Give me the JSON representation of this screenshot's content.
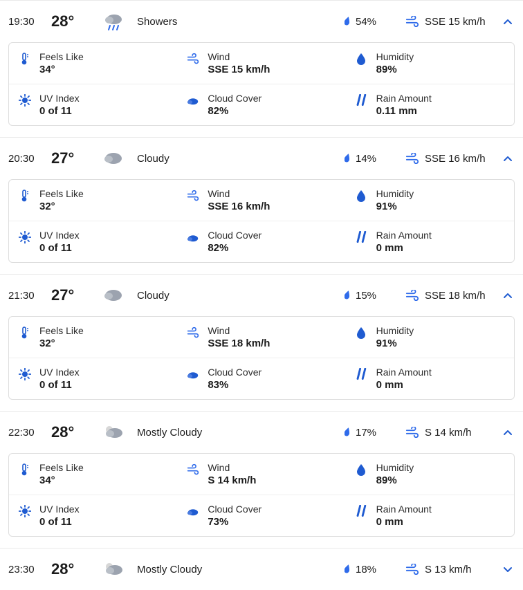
{
  "labels": {
    "feels_like": "Feels Like",
    "wind": "Wind",
    "humidity": "Humidity",
    "uv": "UV Index",
    "cloud": "Cloud Cover",
    "rain": "Rain Amount"
  },
  "colors": {
    "accent": "#1f5bd1",
    "text": "#1b1b1b",
    "border": "#dedede",
    "divider": "#e9e9e9",
    "cloud_gray": "#9ca3af"
  },
  "hours": [
    {
      "time": "19:30",
      "temp": "28°",
      "condition_icon": "showers",
      "condition": "Showers",
      "precip": "54%",
      "wind_summary": "SSE 15 km/h",
      "expanded": true,
      "details": {
        "feels_like": "34°",
        "wind": "SSE 15 km/h",
        "humidity": "89%",
        "uv": "0 of 11",
        "cloud": "82%",
        "rain": "0.11 mm"
      }
    },
    {
      "time": "20:30",
      "temp": "27°",
      "condition_icon": "cloudy",
      "condition": "Cloudy",
      "precip": "14%",
      "wind_summary": "SSE 16 km/h",
      "expanded": true,
      "details": {
        "feels_like": "32°",
        "wind": "SSE 16 km/h",
        "humidity": "91%",
        "uv": "0 of 11",
        "cloud": "82%",
        "rain": "0 mm"
      }
    },
    {
      "time": "21:30",
      "temp": "27°",
      "condition_icon": "cloudy",
      "condition": "Cloudy",
      "precip": "15%",
      "wind_summary": "SSE 18 km/h",
      "expanded": true,
      "details": {
        "feels_like": "32°",
        "wind": "SSE 18 km/h",
        "humidity": "91%",
        "uv": "0 of 11",
        "cloud": "83%",
        "rain": "0 mm"
      }
    },
    {
      "time": "22:30",
      "temp": "28°",
      "condition_icon": "mostly_cloudy",
      "condition": "Mostly Cloudy",
      "precip": "17%",
      "wind_summary": "S 14 km/h",
      "expanded": true,
      "details": {
        "feels_like": "34°",
        "wind": "S 14 km/h",
        "humidity": "89%",
        "uv": "0 of 11",
        "cloud": "73%",
        "rain": "0 mm"
      }
    },
    {
      "time": "23:30",
      "temp": "28°",
      "condition_icon": "mostly_cloudy",
      "condition": "Mostly Cloudy",
      "precip": "18%",
      "wind_summary": "S 13 km/h",
      "expanded": false,
      "details": null
    }
  ]
}
